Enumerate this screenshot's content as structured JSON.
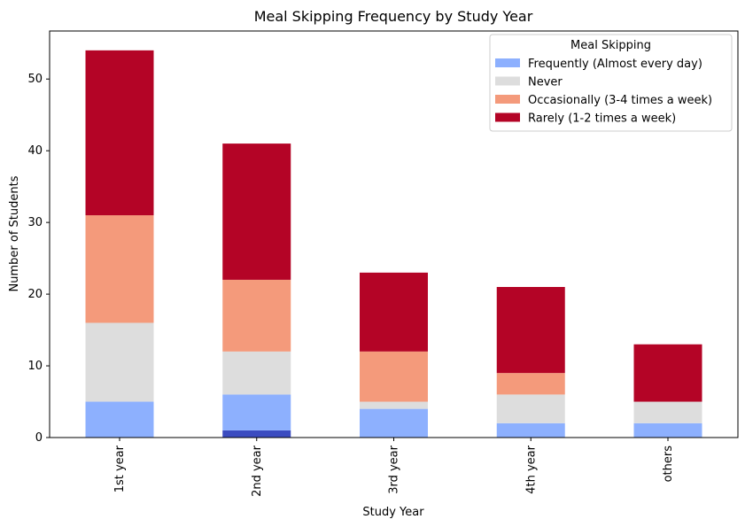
{
  "chart_data": {
    "type": "bar",
    "stacked": true,
    "title": "Meal Skipping Frequency by Study Year",
    "xlabel": "Study Year",
    "ylabel": "Number of Students",
    "categories": [
      "1st year",
      "2nd year",
      "3rd year",
      "4th year",
      "others"
    ],
    "ylim": [
      0,
      56.7
    ],
    "yticks": [
      0,
      10,
      20,
      30,
      40,
      50
    ],
    "grid": false,
    "legend_title": "Meal Skipping",
    "legend_position": "upper right",
    "series": [
      {
        "name": "",
        "color": "#3b4cc0",
        "values": [
          0,
          1,
          0,
          0,
          0
        ]
      },
      {
        "name": "Frequently (Almost every day)",
        "color": "#8db0fe",
        "values": [
          5,
          5,
          4,
          2,
          2
        ]
      },
      {
        "name": "Never",
        "color": "#dddddd",
        "values": [
          11,
          6,
          1,
          4,
          3
        ]
      },
      {
        "name": "Occasionally (3-4 times a week)",
        "color": "#f49a7b",
        "values": [
          15,
          10,
          7,
          3,
          0
        ]
      },
      {
        "name": "Rarely (1-2 times a week)",
        "color": "#b40426",
        "values": [
          23,
          19,
          11,
          12,
          8
        ]
      }
    ]
  }
}
